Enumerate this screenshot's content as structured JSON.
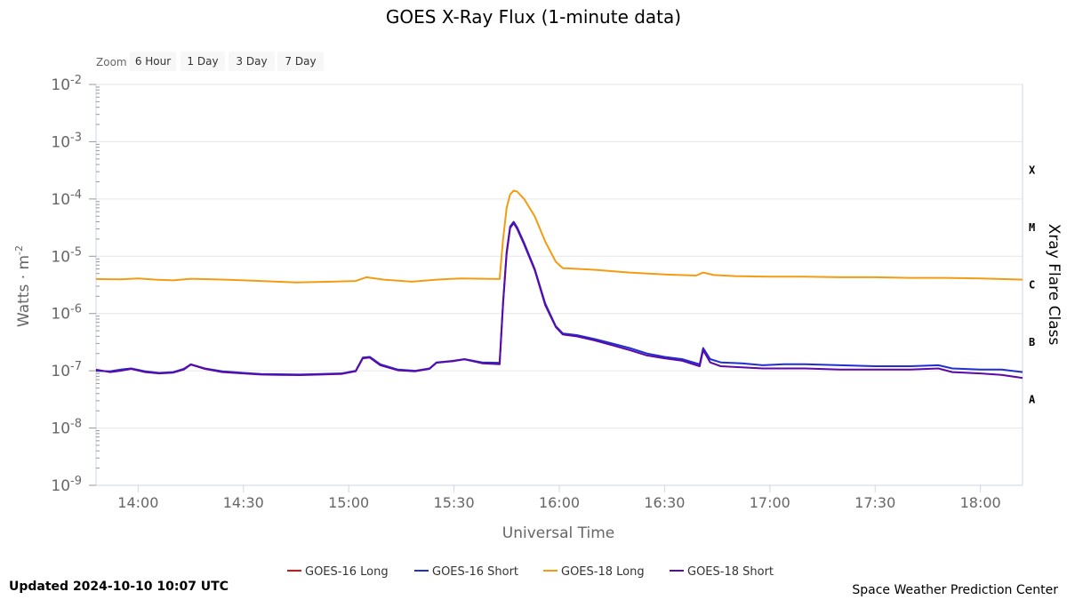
{
  "zoom": {
    "label": "Zoom",
    "options": [
      "6 Hour",
      "1 Day",
      "3 Day",
      "7 Day"
    ]
  },
  "footer": {
    "updated": "Updated 2024-10-10 10:07 UTC",
    "credit": "Space Weather Prediction Center"
  },
  "chart_data": {
    "type": "line",
    "title": "GOES X-Ray Flux (1-minute data)",
    "xlabel": "Universal Time",
    "ylabel": "Watts · m",
    "ylabel_superscript": "-2",
    "y2label": "Xray Flare Class",
    "yscale": "log",
    "ylim": [
      1e-09,
      0.01
    ],
    "y_ticks": [
      {
        "mantissa": "10",
        "exp": "-2",
        "value": 0.01
      },
      {
        "mantissa": "10",
        "exp": "-3",
        "value": 0.001
      },
      {
        "mantissa": "10",
        "exp": "-4",
        "value": 0.0001
      },
      {
        "mantissa": "10",
        "exp": "-5",
        "value": 1e-05
      },
      {
        "mantissa": "10",
        "exp": "-6",
        "value": 1e-06
      },
      {
        "mantissa": "10",
        "exp": "-7",
        "value": 1e-07
      },
      {
        "mantissa": "10",
        "exp": "-8",
        "value": 1e-08
      },
      {
        "mantissa": "10",
        "exp": "-9",
        "value": 1e-09
      }
    ],
    "flare_classes": [
      {
        "label": "X",
        "value": 0.000316
      },
      {
        "label": "M",
        "value": 3.16e-05
      },
      {
        "label": "C",
        "value": 3.16e-06
      },
      {
        "label": "B",
        "value": 3.16e-07
      },
      {
        "label": "A",
        "value": 3.16e-08
      }
    ],
    "xlim": [
      "13:48",
      "18:12"
    ],
    "x_ticks": [
      "14:00",
      "14:30",
      "15:00",
      "15:30",
      "16:00",
      "16:30",
      "17:00",
      "17:30",
      "18:00"
    ],
    "grid": true,
    "legend": "bottom",
    "series": [
      {
        "name": "GOES-16 Long",
        "color": "#dd1111",
        "points": []
      },
      {
        "name": "GOES-16 Short",
        "color": "#1f2fd0",
        "points": [
          [
            "13:48",
            1e-07
          ],
          [
            "13:52",
            9.8e-08
          ],
          [
            "13:55",
            1.05e-07
          ],
          [
            "13:58",
            1.1e-07
          ],
          [
            "14:02",
            9.8e-08
          ],
          [
            "14:06",
            9.2e-08
          ],
          [
            "14:10",
            9.5e-08
          ],
          [
            "14:13",
            1.08e-07
          ],
          [
            "14:15",
            1.3e-07
          ],
          [
            "14:19",
            1.1e-07
          ],
          [
            "14:24",
            9.8e-08
          ],
          [
            "14:30",
            9.2e-08
          ],
          [
            "14:35",
            8.8e-08
          ],
          [
            "14:40",
            8.7e-08
          ],
          [
            "14:46",
            8.6e-08
          ],
          [
            "14:52",
            8.8e-08
          ],
          [
            "14:58",
            9e-08
          ],
          [
            "15:02",
            1e-07
          ],
          [
            "15:04",
            1.7e-07
          ],
          [
            "15:06",
            1.75e-07
          ],
          [
            "15:09",
            1.3e-07
          ],
          [
            "15:14",
            1.05e-07
          ],
          [
            "15:19",
            1e-07
          ],
          [
            "15:23",
            1.1e-07
          ],
          [
            "15:25",
            1.4e-07
          ],
          [
            "15:30",
            1.5e-07
          ],
          [
            "15:33",
            1.6e-07
          ],
          [
            "15:38",
            1.4e-07
          ],
          [
            "15:43",
            1.38e-07
          ],
          [
            "15:44",
            1.6e-06
          ],
          [
            "15:45",
            1.2e-05
          ],
          [
            "15:46",
            3.3e-05
          ],
          [
            "15:47",
            4e-05
          ],
          [
            "15:48",
            3.2e-05
          ],
          [
            "15:50",
            1.7e-05
          ],
          [
            "15:53",
            6e-06
          ],
          [
            "15:56",
            1.5e-06
          ],
          [
            "15:59",
            6e-07
          ],
          [
            "16:01",
            4.5e-07
          ],
          [
            "16:05",
            4.2e-07
          ],
          [
            "16:10",
            3.6e-07
          ],
          [
            "16:15",
            3e-07
          ],
          [
            "16:20",
            2.5e-07
          ],
          [
            "16:25",
            2e-07
          ],
          [
            "16:30",
            1.75e-07
          ],
          [
            "16:35",
            1.6e-07
          ],
          [
            "16:40",
            1.3e-07
          ],
          [
            "16:41",
            2.5e-07
          ],
          [
            "16:43",
            1.6e-07
          ],
          [
            "16:46",
            1.4e-07
          ],
          [
            "16:52",
            1.35e-07
          ],
          [
            "16:58",
            1.25e-07
          ],
          [
            "17:04",
            1.3e-07
          ],
          [
            "17:10",
            1.3e-07
          ],
          [
            "17:20",
            1.25e-07
          ],
          [
            "17:30",
            1.2e-07
          ],
          [
            "17:40",
            1.2e-07
          ],
          [
            "17:48",
            1.25e-07
          ],
          [
            "17:52",
            1.1e-07
          ],
          [
            "18:00",
            1.05e-07
          ],
          [
            "18:06",
            1.05e-07
          ],
          [
            "18:12",
            9.5e-08
          ]
        ]
      },
      {
        "name": "GOES-18 Long",
        "color": "#f39c12",
        "points": [
          [
            "13:48",
            4e-06
          ],
          [
            "13:55",
            3.95e-06
          ],
          [
            "14:00",
            4.1e-06
          ],
          [
            "14:05",
            3.9e-06
          ],
          [
            "14:10",
            3.8e-06
          ],
          [
            "14:15",
            4.05e-06
          ],
          [
            "14:25",
            3.9e-06
          ],
          [
            "14:35",
            3.7e-06
          ],
          [
            "14:45",
            3.5e-06
          ],
          [
            "14:55",
            3.6e-06
          ],
          [
            "15:02",
            3.7e-06
          ],
          [
            "15:05",
            4.3e-06
          ],
          [
            "15:10",
            3.9e-06
          ],
          [
            "15:18",
            3.6e-06
          ],
          [
            "15:25",
            3.9e-06
          ],
          [
            "15:32",
            4.1e-06
          ],
          [
            "15:43",
            4e-06
          ],
          [
            "15:44",
            2e-05
          ],
          [
            "15:45",
            7e-05
          ],
          [
            "15:46",
            0.00012
          ],
          [
            "15:47",
            0.00014
          ],
          [
            "15:48",
            0.000135
          ],
          [
            "15:50",
            0.0001
          ],
          [
            "15:53",
            5e-05
          ],
          [
            "15:56",
            1.8e-05
          ],
          [
            "15:59",
            8e-06
          ],
          [
            "16:01",
            6.2e-06
          ],
          [
            "16:10",
            5.8e-06
          ],
          [
            "16:20",
            5.2e-06
          ],
          [
            "16:30",
            4.8e-06
          ],
          [
            "16:39",
            4.6e-06
          ],
          [
            "16:41",
            5.2e-06
          ],
          [
            "16:44",
            4.7e-06
          ],
          [
            "16:50",
            4.5e-06
          ],
          [
            "17:00",
            4.4e-06
          ],
          [
            "17:10",
            4.4e-06
          ],
          [
            "17:20",
            4.3e-06
          ],
          [
            "17:30",
            4.3e-06
          ],
          [
            "17:40",
            4.2e-06
          ],
          [
            "17:50",
            4.2e-06
          ],
          [
            "18:00",
            4.1e-06
          ],
          [
            "18:12",
            3.9e-06
          ]
        ]
      },
      {
        "name": "GOES-18 Short",
        "color": "#5b0aa8",
        "points": [
          [
            "13:48",
            1.05e-07
          ],
          [
            "13:52",
            9.5e-08
          ],
          [
            "13:55",
            1e-07
          ],
          [
            "13:58",
            1.08e-07
          ],
          [
            "14:02",
            9.5e-08
          ],
          [
            "14:06",
            9e-08
          ],
          [
            "14:10",
            9.3e-08
          ],
          [
            "14:13",
            1.05e-07
          ],
          [
            "14:15",
            1.28e-07
          ],
          [
            "14:19",
            1.08e-07
          ],
          [
            "14:24",
            9.5e-08
          ],
          [
            "14:30",
            9e-08
          ],
          [
            "14:35",
            8.6e-08
          ],
          [
            "14:40",
            8.5e-08
          ],
          [
            "14:46",
            8.4e-08
          ],
          [
            "14:52",
            8.6e-08
          ],
          [
            "14:58",
            8.8e-08
          ],
          [
            "15:02",
            9.8e-08
          ],
          [
            "15:04",
            1.65e-07
          ],
          [
            "15:06",
            1.7e-07
          ],
          [
            "15:09",
            1.25e-07
          ],
          [
            "15:14",
            1.02e-07
          ],
          [
            "15:19",
            9.8e-08
          ],
          [
            "15:23",
            1.08e-07
          ],
          [
            "15:25",
            1.38e-07
          ],
          [
            "15:30",
            1.48e-07
          ],
          [
            "15:33",
            1.58e-07
          ],
          [
            "15:38",
            1.35e-07
          ],
          [
            "15:43",
            1.3e-07
          ],
          [
            "15:44",
            1.5e-06
          ],
          [
            "15:45",
            1.1e-05
          ],
          [
            "15:46",
            3.1e-05
          ],
          [
            "15:47",
            3.8e-05
          ],
          [
            "15:48",
            3e-05
          ],
          [
            "15:50",
            1.6e-05
          ],
          [
            "15:53",
            5.7e-06
          ],
          [
            "15:56",
            1.4e-06
          ],
          [
            "15:59",
            5.8e-07
          ],
          [
            "16:01",
            4.3e-07
          ],
          [
            "16:05",
            4e-07
          ],
          [
            "16:10",
            3.4e-07
          ],
          [
            "16:15",
            2.8e-07
          ],
          [
            "16:20",
            2.3e-07
          ],
          [
            "16:25",
            1.85e-07
          ],
          [
            "16:30",
            1.65e-07
          ],
          [
            "16:35",
            1.5e-07
          ],
          [
            "16:40",
            1.2e-07
          ],
          [
            "16:41",
            2.3e-07
          ],
          [
            "16:43",
            1.4e-07
          ],
          [
            "16:46",
            1.2e-07
          ],
          [
            "16:52",
            1.15e-07
          ],
          [
            "16:58",
            1.1e-07
          ],
          [
            "17:04",
            1.1e-07
          ],
          [
            "17:10",
            1.1e-07
          ],
          [
            "17:20",
            1.05e-07
          ],
          [
            "17:30",
            1.05e-07
          ],
          [
            "17:40",
            1.05e-07
          ],
          [
            "17:48",
            1.1e-07
          ],
          [
            "17:52",
            9.5e-08
          ],
          [
            "18:00",
            9e-08
          ],
          [
            "18:06",
            8.5e-08
          ],
          [
            "18:12",
            7.5e-08
          ]
        ]
      }
    ]
  }
}
